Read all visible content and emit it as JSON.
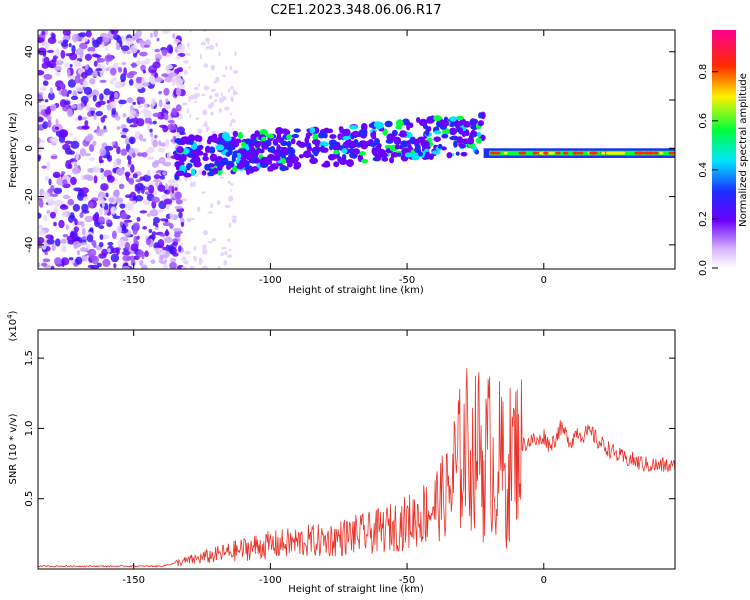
{
  "title": "C2E1.2023.348.06.06.R17",
  "colors": {
    "snr_line": "#e8332a",
    "axis": "#000000"
  },
  "chart_data": [
    {
      "type": "heatmap",
      "xlabel": "Height of straight line (km)",
      "ylabel": "Frequency (Hz)",
      "xlim": [
        -185,
        48
      ],
      "ylim": [
        -50,
        49
      ],
      "xticks": [
        -150,
        -100,
        -50,
        0
      ],
      "yticks": [
        -40,
        -20,
        0,
        20,
        40
      ],
      "colorbar": {
        "label": "Normalized spectral amplitude",
        "range": [
          0.0,
          0.97
        ],
        "ticks": [
          0.0,
          0.2,
          0.4,
          0.6,
          0.8
        ],
        "colormap": "rainbow (white-violet-blue-cyan-green-yellow-red-magenta)"
      },
      "grid": false
    },
    {
      "type": "line",
      "xlabel": "Height of straight line (km)",
      "ylabel": "SNR (10 * v/v)",
      "ylabel_multiplier": "(x10",
      "ylabel_multiplier_exp": "4",
      "ylabel_multiplier_close": ")",
      "xlim": [
        -185,
        48
      ],
      "ylim": [
        0,
        1.7
      ],
      "xticks": [
        -150,
        -100,
        -50,
        0
      ],
      "yticks": [
        0.5,
        1.0,
        1.5
      ],
      "series": [
        {
          "x": [
            -185,
            -170,
            -150,
            -140,
            -135,
            -130,
            -125,
            -120,
            -115,
            -110,
            -105,
            -100,
            -95,
            -90,
            -85,
            -80,
            -75,
            -70,
            -65,
            -60,
            -55,
            -50,
            -45,
            -40,
            -35,
            -32,
            -30,
            -28,
            -26,
            -24,
            -22,
            -20,
            -18,
            -16,
            -14,
            -12,
            -10,
            -8,
            -6,
            -4,
            -2,
            0,
            2,
            4,
            6,
            8,
            10,
            12,
            14,
            16,
            18,
            20,
            22,
            24,
            26,
            28,
            30,
            32,
            34,
            36,
            38,
            40,
            42,
            44,
            46,
            48
          ],
          "values": [
            0.02,
            0.02,
            0.02,
            0.02,
            0.04,
            0.06,
            0.08,
            0.1,
            0.12,
            0.14,
            0.16,
            0.17,
            0.18,
            0.19,
            0.2,
            0.2,
            0.22,
            0.24,
            0.25,
            0.27,
            0.3,
            0.33,
            0.38,
            0.45,
            0.55,
            0.68,
            0.8,
            0.92,
            0.75,
            0.95,
            0.7,
            0.9,
            0.65,
            0.82,
            0.6,
            0.8,
            0.85,
            0.88,
            0.9,
            0.92,
            0.9,
            0.95,
            0.88,
            0.92,
            1.0,
            0.96,
            0.9,
            0.98,
            0.95,
            0.97,
            0.96,
            0.9,
            0.88,
            0.85,
            0.82,
            0.8,
            0.78,
            0.78,
            0.76,
            0.75,
            0.74,
            0.74,
            0.73,
            0.74,
            0.73,
            0.72
          ]
        }
      ],
      "grid": false
    }
  ]
}
